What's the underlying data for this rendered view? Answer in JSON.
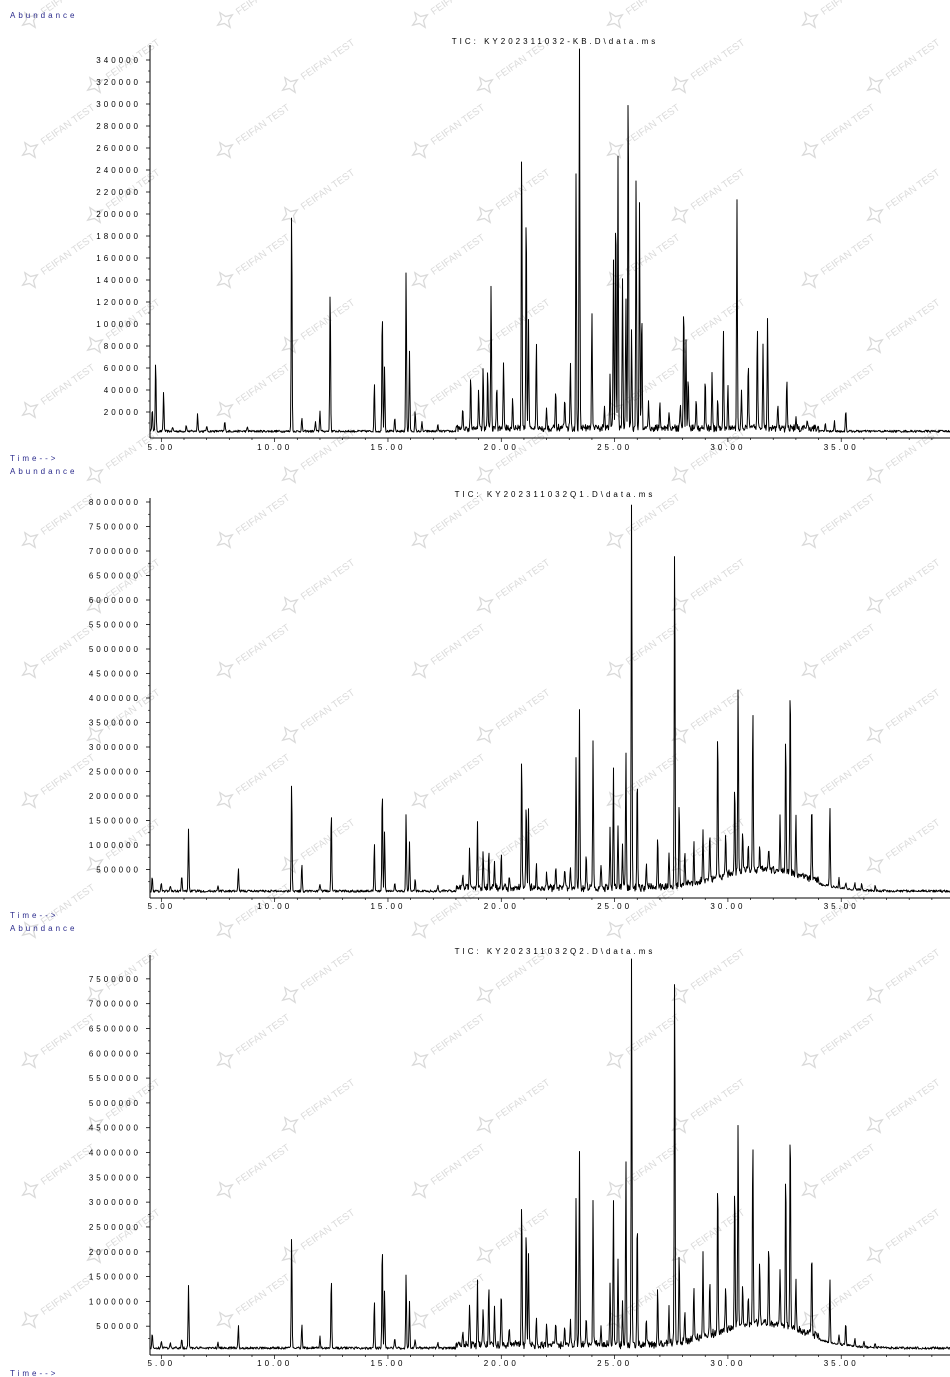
{
  "watermark": {
    "text": "FEIFAN TEST",
    "color": "#bdbdbd"
  },
  "colors": {
    "label": "#2a2a8c",
    "trace": "#000000",
    "axis": "#000000"
  },
  "chart_data": [
    {
      "type": "line",
      "title": "TIC: KY202311032-KB.D\\data.ms",
      "ylabel": "Abundance",
      "xlabel": "Time-->",
      "xlim": [
        4.5,
        39.8
      ],
      "ylim": [
        0,
        350000
      ],
      "x_ticks": [
        5,
        10,
        15,
        20,
        25,
        30,
        35
      ],
      "x_tick_labels": [
        "5.00",
        "10.00",
        "15.00",
        "20.00",
        "25.00",
        "30.00",
        "35.00"
      ],
      "y_ticks": [
        20000,
        40000,
        60000,
        80000,
        100000,
        120000,
        140000,
        160000,
        180000,
        200000,
        220000,
        240000,
        260000,
        280000,
        300000,
        320000,
        340000
      ],
      "baseline": 2500,
      "peaks": [
        {
          "x": 4.6,
          "y": 22000
        },
        {
          "x": 4.75,
          "y": 66000
        },
        {
          "x": 5.1,
          "y": 36000
        },
        {
          "x": 5.5,
          "y": 4000
        },
        {
          "x": 6.1,
          "y": 6000
        },
        {
          "x": 6.6,
          "y": 16000
        },
        {
          "x": 7.0,
          "y": 5000
        },
        {
          "x": 7.8,
          "y": 9000
        },
        {
          "x": 8.8,
          "y": 4000
        },
        {
          "x": 10.75,
          "y": 207000
        },
        {
          "x": 11.2,
          "y": 12000
        },
        {
          "x": 11.8,
          "y": 9000
        },
        {
          "x": 12.0,
          "y": 19000
        },
        {
          "x": 12.45,
          "y": 132000
        },
        {
          "x": 14.4,
          "y": 45000
        },
        {
          "x": 14.75,
          "y": 114000
        },
        {
          "x": 14.85,
          "y": 60000
        },
        {
          "x": 15.3,
          "y": 12000
        },
        {
          "x": 15.8,
          "y": 148000
        },
        {
          "x": 15.95,
          "y": 72000
        },
        {
          "x": 16.2,
          "y": 18000
        },
        {
          "x": 16.5,
          "y": 8000
        },
        {
          "x": 17.2,
          "y": 6000
        },
        {
          "x": 18.3,
          "y": 16000
        },
        {
          "x": 18.65,
          "y": 50000
        },
        {
          "x": 19.0,
          "y": 38000
        },
        {
          "x": 19.2,
          "y": 56000
        },
        {
          "x": 19.4,
          "y": 53000
        },
        {
          "x": 19.55,
          "y": 132000
        },
        {
          "x": 19.8,
          "y": 40000
        },
        {
          "x": 20.1,
          "y": 62000
        },
        {
          "x": 20.5,
          "y": 30000
        },
        {
          "x": 20.9,
          "y": 263000
        },
        {
          "x": 21.1,
          "y": 204000
        },
        {
          "x": 21.2,
          "y": 98000
        },
        {
          "x": 21.55,
          "y": 78000
        },
        {
          "x": 22.0,
          "y": 18000
        },
        {
          "x": 22.4,
          "y": 34000
        },
        {
          "x": 22.8,
          "y": 26000
        },
        {
          "x": 23.05,
          "y": 58000
        },
        {
          "x": 23.3,
          "y": 232000
        },
        {
          "x": 23.45,
          "y": 350000
        },
        {
          "x": 24.0,
          "y": 108000
        },
        {
          "x": 24.55,
          "y": 22000
        },
        {
          "x": 24.8,
          "y": 48000
        },
        {
          "x": 24.95,
          "y": 152000
        },
        {
          "x": 25.05,
          "y": 208000
        },
        {
          "x": 25.15,
          "y": 248000
        },
        {
          "x": 25.35,
          "y": 136000
        },
        {
          "x": 25.5,
          "y": 120000
        },
        {
          "x": 25.6,
          "y": 326000
        },
        {
          "x": 25.75,
          "y": 90000
        },
        {
          "x": 25.95,
          "y": 233000
        },
        {
          "x": 26.1,
          "y": 204000
        },
        {
          "x": 26.2,
          "y": 110000
        },
        {
          "x": 26.5,
          "y": 26000
        },
        {
          "x": 27.0,
          "y": 26000
        },
        {
          "x": 27.4,
          "y": 16000
        },
        {
          "x": 27.9,
          "y": 22000
        },
        {
          "x": 28.05,
          "y": 114000
        },
        {
          "x": 28.15,
          "y": 80000
        },
        {
          "x": 28.25,
          "y": 48000
        },
        {
          "x": 28.6,
          "y": 28000
        },
        {
          "x": 29.0,
          "y": 46000
        },
        {
          "x": 29.3,
          "y": 50000
        },
        {
          "x": 29.55,
          "y": 28000
        },
        {
          "x": 29.8,
          "y": 92000
        },
        {
          "x": 30.0,
          "y": 38000
        },
        {
          "x": 30.4,
          "y": 206000
        },
        {
          "x": 30.6,
          "y": 34000
        },
        {
          "x": 30.9,
          "y": 64000
        },
        {
          "x": 31.3,
          "y": 92000
        },
        {
          "x": 31.55,
          "y": 78000
        },
        {
          "x": 31.75,
          "y": 102000
        },
        {
          "x": 32.2,
          "y": 22000
        },
        {
          "x": 32.6,
          "y": 48000
        },
        {
          "x": 33.0,
          "y": 10000
        },
        {
          "x": 33.5,
          "y": 8000
        },
        {
          "x": 34.3,
          "y": 8000
        },
        {
          "x": 34.7,
          "y": 10000
        },
        {
          "x": 35.2,
          "y": 20000
        }
      ]
    },
    {
      "type": "line",
      "title": "TIC: KY202311032Q1.D\\data.ms",
      "ylabel": "Abundance",
      "xlabel": "Time-->",
      "xlim": [
        4.5,
        39.8
      ],
      "ylim": [
        0,
        8000000
      ],
      "x_ticks": [
        5,
        10,
        15,
        20,
        25,
        30,
        35
      ],
      "x_tick_labels": [
        "5.00",
        "10.00",
        "15.00",
        "20.00",
        "25.00",
        "30.00",
        "35.00"
      ],
      "y_ticks": [
        500000,
        1000000,
        1500000,
        2000000,
        2500000,
        3000000,
        3500000,
        4000000,
        4500000,
        5000000,
        5500000,
        6000000,
        6500000,
        7000000,
        7500000,
        8000000
      ],
      "baseline": 60000,
      "hump": {
        "center": 31.5,
        "width": 2.6,
        "height": 380000
      },
      "peaks": [
        {
          "x": 4.6,
          "y": 300000
        },
        {
          "x": 5.0,
          "y": 180000
        },
        {
          "x": 5.4,
          "y": 120000
        },
        {
          "x": 5.9,
          "y": 320000
        },
        {
          "x": 6.2,
          "y": 1280000
        },
        {
          "x": 7.5,
          "y": 100000
        },
        {
          "x": 8.4,
          "y": 450000
        },
        {
          "x": 10.75,
          "y": 2300000
        },
        {
          "x": 11.2,
          "y": 560000
        },
        {
          "x": 12.0,
          "y": 150000
        },
        {
          "x": 12.5,
          "y": 1700000
        },
        {
          "x": 14.4,
          "y": 1000000
        },
        {
          "x": 14.75,
          "y": 2150000
        },
        {
          "x": 14.85,
          "y": 1200000
        },
        {
          "x": 15.3,
          "y": 180000
        },
        {
          "x": 15.8,
          "y": 1600000
        },
        {
          "x": 15.95,
          "y": 1000000
        },
        {
          "x": 16.2,
          "y": 250000
        },
        {
          "x": 17.2,
          "y": 120000
        },
        {
          "x": 18.3,
          "y": 260000
        },
        {
          "x": 18.6,
          "y": 800000
        },
        {
          "x": 18.95,
          "y": 1350000
        },
        {
          "x": 19.2,
          "y": 780000
        },
        {
          "x": 19.45,
          "y": 760000
        },
        {
          "x": 19.7,
          "y": 560000
        },
        {
          "x": 20.0,
          "y": 730000
        },
        {
          "x": 20.35,
          "y": 300000
        },
        {
          "x": 20.9,
          "y": 2800000
        },
        {
          "x": 21.1,
          "y": 1800000
        },
        {
          "x": 21.2,
          "y": 1650000
        },
        {
          "x": 21.55,
          "y": 460000
        },
        {
          "x": 22.0,
          "y": 350000
        },
        {
          "x": 22.4,
          "y": 420000
        },
        {
          "x": 22.8,
          "y": 380000
        },
        {
          "x": 23.05,
          "y": 440000
        },
        {
          "x": 23.3,
          "y": 2700000
        },
        {
          "x": 23.45,
          "y": 3700000
        },
        {
          "x": 23.75,
          "y": 700000
        },
        {
          "x": 24.05,
          "y": 3000000
        },
        {
          "x": 24.4,
          "y": 500000
        },
        {
          "x": 24.8,
          "y": 1250000
        },
        {
          "x": 24.95,
          "y": 2450000
        },
        {
          "x": 25.15,
          "y": 1300000
        },
        {
          "x": 25.35,
          "y": 900000
        },
        {
          "x": 25.5,
          "y": 2800000
        },
        {
          "x": 25.75,
          "y": 8000000
        },
        {
          "x": 26.0,
          "y": 2350000
        },
        {
          "x": 26.4,
          "y": 500000
        },
        {
          "x": 26.9,
          "y": 1100000
        },
        {
          "x": 27.4,
          "y": 700000
        },
        {
          "x": 27.65,
          "y": 7200000
        },
        {
          "x": 27.85,
          "y": 1800000
        },
        {
          "x": 28.1,
          "y": 650000
        },
        {
          "x": 28.5,
          "y": 900000
        },
        {
          "x": 28.9,
          "y": 1100000
        },
        {
          "x": 29.2,
          "y": 1000000
        },
        {
          "x": 29.55,
          "y": 3100000
        },
        {
          "x": 29.9,
          "y": 900000
        },
        {
          "x": 30.3,
          "y": 1800000
        },
        {
          "x": 30.45,
          "y": 3900000
        },
        {
          "x": 30.65,
          "y": 800000
        },
        {
          "x": 30.9,
          "y": 600000
        },
        {
          "x": 31.1,
          "y": 3350000
        },
        {
          "x": 31.4,
          "y": 500000
        },
        {
          "x": 31.8,
          "y": 450000
        },
        {
          "x": 32.3,
          "y": 1100000
        },
        {
          "x": 32.55,
          "y": 2850000
        },
        {
          "x": 32.75,
          "y": 4100000
        },
        {
          "x": 33.0,
          "y": 1200000
        },
        {
          "x": 33.7,
          "y": 1550000
        },
        {
          "x": 34.5,
          "y": 1650000
        },
        {
          "x": 34.9,
          "y": 200000
        },
        {
          "x": 35.2,
          "y": 120000
        },
        {
          "x": 35.6,
          "y": 150000
        },
        {
          "x": 35.9,
          "y": 120000
        },
        {
          "x": 36.5,
          "y": 110000
        }
      ]
    },
    {
      "type": "line",
      "title": "TIC: KY202311032Q2.D\\data.ms",
      "ylabel": "Abundance",
      "xlabel": "Time-->",
      "xlim": [
        4.5,
        39.8
      ],
      "ylim": [
        0,
        7900000
      ],
      "x_ticks": [
        5,
        10,
        15,
        20,
        25,
        30,
        35
      ],
      "x_tick_labels": [
        "5.00",
        "10.00",
        "15.00",
        "20.00",
        "25.00",
        "30.00",
        "35.00"
      ],
      "y_ticks": [
        500000,
        1000000,
        1500000,
        2000000,
        2500000,
        3000000,
        3500000,
        4000000,
        4500000,
        5000000,
        5500000,
        6000000,
        6500000,
        7000000,
        7500000
      ],
      "baseline": 60000,
      "hump": {
        "center": 31.5,
        "width": 2.6,
        "height": 450000
      },
      "peaks": [
        {
          "x": 4.6,
          "y": 300000
        },
        {
          "x": 5.0,
          "y": 160000
        },
        {
          "x": 5.4,
          "y": 110000
        },
        {
          "x": 5.9,
          "y": 200000
        },
        {
          "x": 6.2,
          "y": 1280000
        },
        {
          "x": 7.5,
          "y": 100000
        },
        {
          "x": 8.4,
          "y": 450000
        },
        {
          "x": 10.75,
          "y": 2300000
        },
        {
          "x": 11.2,
          "y": 500000
        },
        {
          "x": 12.0,
          "y": 260000
        },
        {
          "x": 12.5,
          "y": 1450000
        },
        {
          "x": 14.4,
          "y": 950000
        },
        {
          "x": 14.75,
          "y": 2150000
        },
        {
          "x": 14.85,
          "y": 1150000
        },
        {
          "x": 15.3,
          "y": 180000
        },
        {
          "x": 15.8,
          "y": 1500000
        },
        {
          "x": 15.95,
          "y": 950000
        },
        {
          "x": 16.2,
          "y": 200000
        },
        {
          "x": 17.2,
          "y": 120000
        },
        {
          "x": 18.3,
          "y": 260000
        },
        {
          "x": 18.6,
          "y": 850000
        },
        {
          "x": 18.95,
          "y": 1270000
        },
        {
          "x": 19.2,
          "y": 780000
        },
        {
          "x": 19.45,
          "y": 1230000
        },
        {
          "x": 19.7,
          "y": 800000
        },
        {
          "x": 20.0,
          "y": 1150000
        },
        {
          "x": 20.35,
          "y": 400000
        },
        {
          "x": 20.9,
          "y": 3000000
        },
        {
          "x": 21.1,
          "y": 2450000
        },
        {
          "x": 21.2,
          "y": 1800000
        },
        {
          "x": 21.55,
          "y": 600000
        },
        {
          "x": 22.0,
          "y": 400000
        },
        {
          "x": 22.4,
          "y": 450000
        },
        {
          "x": 22.8,
          "y": 420000
        },
        {
          "x": 23.05,
          "y": 500000
        },
        {
          "x": 23.3,
          "y": 3050000
        },
        {
          "x": 23.45,
          "y": 3950000
        },
        {
          "x": 23.75,
          "y": 600000
        },
        {
          "x": 24.05,
          "y": 2950000
        },
        {
          "x": 24.4,
          "y": 450000
        },
        {
          "x": 24.8,
          "y": 1250000
        },
        {
          "x": 24.95,
          "y": 2900000
        },
        {
          "x": 25.15,
          "y": 1700000
        },
        {
          "x": 25.35,
          "y": 900000
        },
        {
          "x": 25.5,
          "y": 3700000
        },
        {
          "x": 25.75,
          "y": 7900000
        },
        {
          "x": 26.0,
          "y": 2600000
        },
        {
          "x": 26.4,
          "y": 500000
        },
        {
          "x": 26.9,
          "y": 1200000
        },
        {
          "x": 27.4,
          "y": 700000
        },
        {
          "x": 27.65,
          "y": 7650000
        },
        {
          "x": 27.85,
          "y": 1850000
        },
        {
          "x": 28.1,
          "y": 650000
        },
        {
          "x": 28.5,
          "y": 1100000
        },
        {
          "x": 28.9,
          "y": 1650000
        },
        {
          "x": 29.2,
          "y": 1100000
        },
        {
          "x": 29.55,
          "y": 3150000
        },
        {
          "x": 29.9,
          "y": 900000
        },
        {
          "x": 30.3,
          "y": 2950000
        },
        {
          "x": 30.45,
          "y": 4200000
        },
        {
          "x": 30.65,
          "y": 800000
        },
        {
          "x": 30.9,
          "y": 600000
        },
        {
          "x": 31.1,
          "y": 3850000
        },
        {
          "x": 31.4,
          "y": 1200000
        },
        {
          "x": 31.8,
          "y": 1650000
        },
        {
          "x": 32.3,
          "y": 1150000
        },
        {
          "x": 32.55,
          "y": 3250000
        },
        {
          "x": 32.75,
          "y": 4200000
        },
        {
          "x": 33.0,
          "y": 1000000
        },
        {
          "x": 33.7,
          "y": 1700000
        },
        {
          "x": 34.5,
          "y": 1300000
        },
        {
          "x": 34.9,
          "y": 200000
        },
        {
          "x": 35.2,
          "y": 480000
        },
        {
          "x": 35.6,
          "y": 150000
        },
        {
          "x": 36.0,
          "y": 120000
        },
        {
          "x": 36.5,
          "y": 110000
        }
      ]
    }
  ]
}
